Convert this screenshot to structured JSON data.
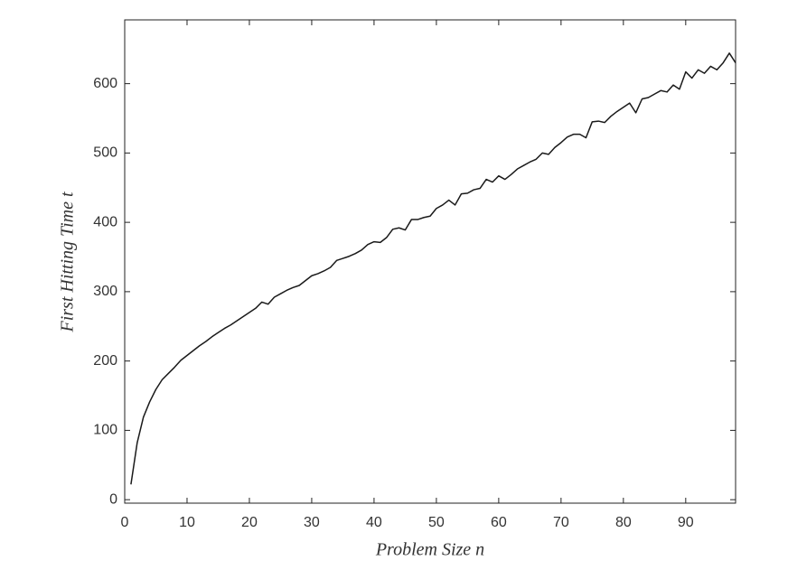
{
  "chart_data": {
    "type": "line",
    "x_label": "Problem Size n",
    "y_label": "First Hitting Time t",
    "color": "#1a1a1a",
    "x": [
      1,
      2,
      3,
      4,
      5,
      6,
      7,
      8,
      9,
      10,
      11,
      12,
      13,
      14,
      15,
      16,
      17,
      18,
      19,
      20,
      21,
      22,
      23,
      24,
      25,
      26,
      27,
      28,
      29,
      30,
      31,
      32,
      33,
      34,
      35,
      36,
      37,
      38,
      39,
      40,
      41,
      42,
      43,
      44,
      45,
      46,
      47,
      48,
      49,
      50,
      51,
      52,
      53,
      54,
      55,
      56,
      57,
      58,
      59,
      60,
      61,
      62,
      63,
      64,
      65,
      66,
      67,
      68,
      69,
      70,
      71,
      72,
      73,
      74,
      75,
      76,
      77,
      78,
      79,
      80,
      81,
      82,
      83,
      84,
      85,
      86,
      87,
      88,
      89,
      90,
      91,
      92,
      93,
      94,
      95,
      96,
      97,
      98
    ],
    "values": [
      22,
      82,
      119,
      141,
      159,
      173,
      182,
      191,
      201,
      208,
      215,
      222,
      228,
      235,
      241,
      247,
      252,
      258,
      264,
      270,
      276,
      285,
      282,
      292,
      297,
      302,
      306,
      309,
      316,
      323,
      326,
      330,
      335,
      345,
      348,
      351,
      355,
      360,
      368,
      372,
      371,
      378,
      390,
      392,
      389,
      404,
      404,
      407,
      409,
      420,
      425,
      432,
      425,
      441,
      442,
      447,
      449,
      462,
      458,
      467,
      462,
      469,
      477,
      482,
      487,
      491,
      500,
      498,
      508,
      515,
      523,
      527,
      527,
      522,
      545,
      546,
      544,
      553,
      560,
      566,
      572,
      558,
      578,
      580,
      585,
      590,
      588,
      598,
      592,
      617,
      608,
      620,
      615,
      625,
      620,
      630,
      644,
      630
    ],
    "xlim": [
      0,
      98
    ],
    "ylim": [
      -5,
      692
    ],
    "xticks": [
      0,
      10,
      20,
      30,
      40,
      50,
      60,
      70,
      80,
      90
    ],
    "yticks": [
      0,
      100,
      200,
      300,
      400,
      500,
      600
    ]
  }
}
